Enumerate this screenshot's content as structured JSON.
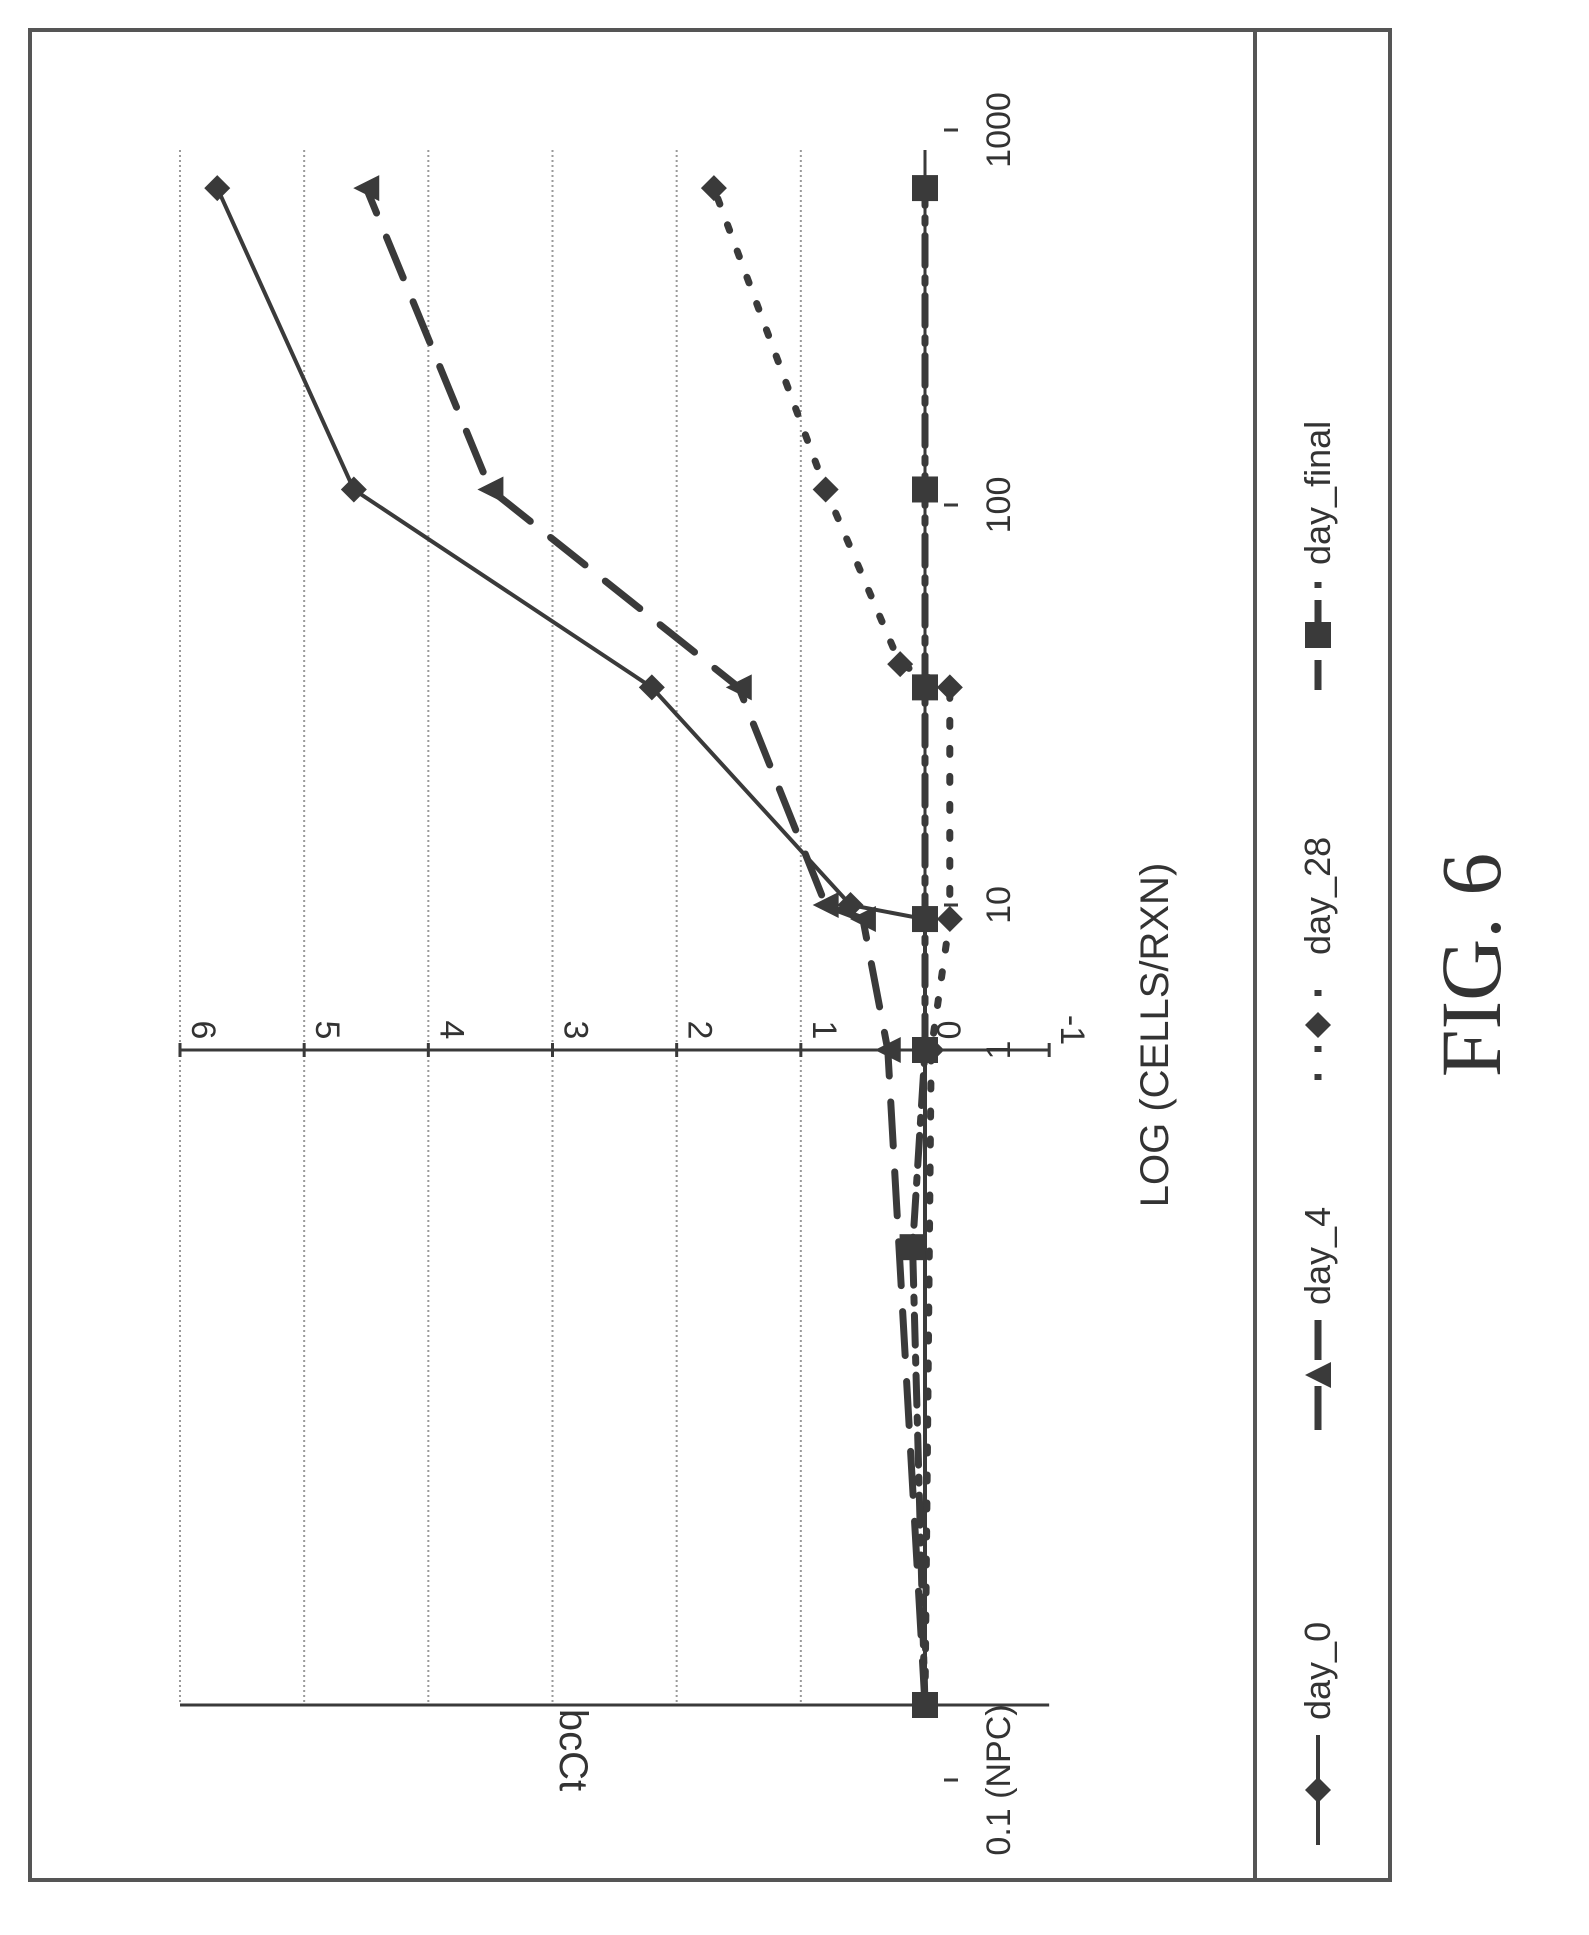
{
  "figure_label": "FIG. 6",
  "colors": {
    "ink": "#3a3a3a",
    "grid": "#9a9a9a",
    "frame": "#555555"
  },
  "chart_data": {
    "type": "line",
    "xlabel": "LOG (CELLS/RXN)",
    "ylabel": "bcCt",
    "x_scale": "log",
    "xlim": [
      0.1,
      1000
    ],
    "ylim": [
      -1,
      6
    ],
    "x_ticks": [
      {
        "value": 0.1,
        "label": "0.1 (NPC)"
      },
      {
        "value": 1,
        "label": "1"
      },
      {
        "value": 10,
        "label": "10"
      },
      {
        "value": 100,
        "label": "100"
      },
      {
        "value": 1000,
        "label": "1000"
      }
    ],
    "y_ticks": [
      {
        "value": -1,
        "label": "-1"
      },
      {
        "value": 0,
        "label": "0"
      },
      {
        "value": 1,
        "label": "1"
      },
      {
        "value": 2,
        "label": "2"
      },
      {
        "value": 3,
        "label": "3"
      },
      {
        "value": 4,
        "label": "4"
      },
      {
        "value": 5,
        "label": "5"
      },
      {
        "value": 6,
        "label": "6"
      }
    ],
    "grid": true,
    "legend_position": "bottom",
    "series": [
      {
        "name": "day_0",
        "marker": "diamond",
        "dash": "solid",
        "points": [
          [
            0.1,
            0.0
          ],
          [
            8,
            0.0
          ],
          [
            10,
            0.6
          ],
          [
            35,
            2.2
          ],
          [
            110,
            4.6
          ],
          [
            700,
            5.7
          ]
        ]
      },
      {
        "name": "day_4",
        "marker": "triangle",
        "dash": "long",
        "points": [
          [
            0.1,
            0.0
          ],
          [
            1,
            0.3
          ],
          [
            8,
            0.5
          ],
          [
            10,
            0.8
          ],
          [
            35,
            1.5
          ],
          [
            110,
            3.5
          ],
          [
            700,
            4.5
          ]
        ]
      },
      {
        "name": "day_28",
        "marker": "diamond",
        "dash": "dotted",
        "points": [
          [
            0.1,
            0.0
          ],
          [
            1,
            -0.05
          ],
          [
            8,
            -0.2
          ],
          [
            35,
            -0.2
          ],
          [
            40,
            0.2
          ],
          [
            110,
            0.8
          ],
          [
            700,
            1.7
          ]
        ]
      },
      {
        "name": "day_final",
        "marker": "square",
        "dash": "dashdot",
        "points": [
          [
            0.1,
            0.0
          ],
          [
            0.5,
            0.1
          ],
          [
            1,
            0.0
          ],
          [
            8,
            0.0
          ],
          [
            35,
            0.0
          ],
          [
            110,
            0.0
          ],
          [
            700,
            0.0
          ]
        ]
      }
    ]
  }
}
